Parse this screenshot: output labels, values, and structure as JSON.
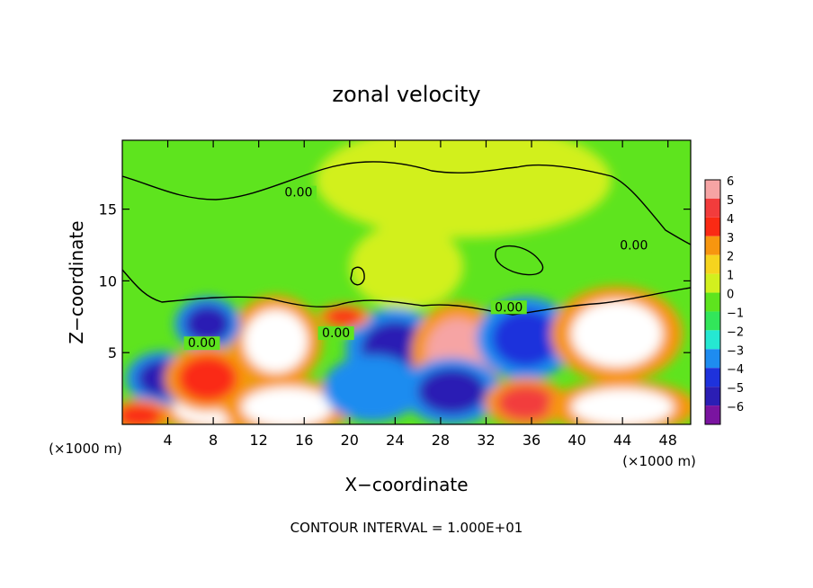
{
  "chart_data": {
    "type": "heatmap",
    "title": "zonal velocity",
    "xlabel": "X−coordinate",
    "ylabel": "Z−coordinate",
    "x_unit_left": "(×1000 m)",
    "x_unit_right": "(×1000 m)",
    "xlim": [
      0,
      50
    ],
    "ylim": [
      0,
      19.8
    ],
    "x_ticks": [
      4,
      8,
      12,
      16,
      20,
      24,
      28,
      32,
      36,
      40,
      44,
      48
    ],
    "x_tick_labels": [
      "4",
      "8",
      "12",
      "16",
      "20",
      "24",
      "28",
      "32",
      "36",
      "40",
      "44",
      "48"
    ],
    "y_ticks": [
      5,
      10,
      15
    ],
    "y_tick_labels": [
      "5",
      "10",
      "15"
    ],
    "colorbar": {
      "levels": [
        6,
        5,
        4,
        3,
        2,
        1,
        0,
        -1,
        -2,
        -3,
        -4,
        -5,
        -6
      ],
      "labels": [
        "6",
        "5",
        "4",
        "3",
        "2",
        "1",
        "0",
        "−1",
        "−2",
        "−3",
        "−4",
        "−5",
        "−6"
      ],
      "colors": [
        "#f6a4a4",
        "#f23c3c",
        "#fa2a14",
        "#f7960f",
        "#f6d41e",
        "#d2f01e",
        "#5ee41e",
        "#32e65a",
        "#25e8d2",
        "#1e8cf0",
        "#1e32dc",
        "#2b1eb4",
        "#7a14a0"
      ]
    },
    "contour_labels": [
      {
        "text": "0.00",
        "x": 15.5,
        "y": 16.0
      },
      {
        "text": "0.00",
        "x": 7.0,
        "y": 5.5
      },
      {
        "text": "0.00",
        "x": 18.8,
        "y": 6.2
      },
      {
        "text": "0.00",
        "x": 34.0,
        "y": 8.0
      },
      {
        "text": "0.00",
        "x": 45.0,
        "y": 12.3
      }
    ],
    "footer": "CONTOUR INTERVAL = 1.000E+01",
    "features": [
      {
        "x": 30,
        "z": 17,
        "value": 0.7,
        "rx": 13,
        "rz": 4
      },
      {
        "x": 25,
        "z": 11,
        "value": 1.3,
        "rx": 5,
        "rz": 3
      },
      {
        "x": 13.5,
        "z": 5.8,
        "value": 8,
        "rx": 2.8,
        "rz": 2.2
      },
      {
        "x": 8,
        "z": 1.2,
        "value": 8,
        "rx": 3.5,
        "rz": 1.3
      },
      {
        "x": 14.5,
        "z": 1.2,
        "value": 8,
        "rx": 4,
        "rz": 1.4
      },
      {
        "x": 24,
        "z": 5.2,
        "value": -5,
        "rx": 3,
        "rz": 2
      },
      {
        "x": 22,
        "z": 2.5,
        "value": -3,
        "rx": 3,
        "rz": 1.6
      },
      {
        "x": 29.5,
        "z": 5,
        "value": 6,
        "rx": 2.8,
        "rz": 2.4
      },
      {
        "x": 29,
        "z": 2.3,
        "value": -5,
        "rx": 3,
        "rz": 1.6
      },
      {
        "x": 35.5,
        "z": 6,
        "value": -4.5,
        "rx": 3,
        "rz": 2
      },
      {
        "x": 35.5,
        "z": 1.5,
        "value": 5,
        "rx": 2.5,
        "rz": 1.2
      },
      {
        "x": 43.5,
        "z": 6.3,
        "value": 8,
        "rx": 4,
        "rz": 2.3
      },
      {
        "x": 44,
        "z": 1.2,
        "value": 8,
        "rx": 4.5,
        "rz": 1.3
      },
      {
        "x": 3.5,
        "z": 3.2,
        "value": -5,
        "rx": 2.2,
        "rz": 1.3
      },
      {
        "x": 7.5,
        "z": 7,
        "value": -5,
        "rx": 2,
        "rz": 1.3
      },
      {
        "x": 7.5,
        "z": 3.2,
        "value": 3.5,
        "rx": 2.6,
        "rz": 1.6
      },
      {
        "x": 1.5,
        "z": 0.6,
        "value": 4,
        "rx": 2,
        "rz": 0.8
      },
      {
        "x": 19.5,
        "z": 7.5,
        "value": 4,
        "rx": 1.6,
        "rz": 0.6
      }
    ]
  }
}
